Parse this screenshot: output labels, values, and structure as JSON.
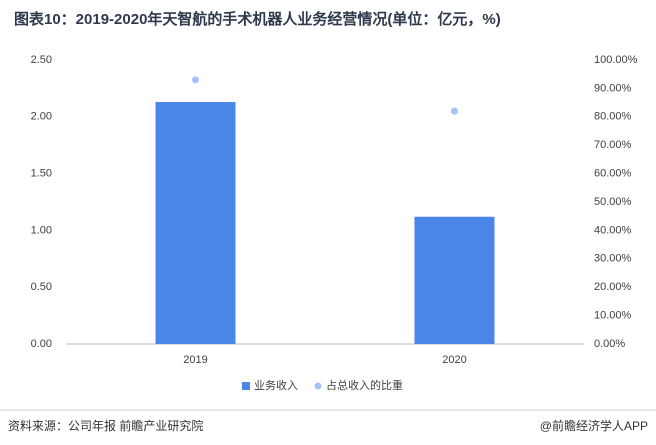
{
  "chart_data": {
    "type": "bar",
    "title": "图表10：2019-2020年天智航的手术机器人业务经营情况(单位：亿元，%)",
    "categories": [
      "2019",
      "2020"
    ],
    "series": [
      {
        "name": "业务收入",
        "color": "#4a86e8",
        "type": "bar",
        "values": [
          2.13,
          1.12
        ]
      },
      {
        "name": "占总收入的比重",
        "color": "#a4c2f4",
        "type": "scatter",
        "axis": "y2",
        "values": [
          93,
          82
        ]
      }
    ],
    "ylim": [
      0,
      2.5
    ],
    "yticks": [
      {
        "value": 0,
        "label": "0.00"
      },
      {
        "value": 0.5,
        "label": "0.50"
      },
      {
        "value": 1,
        "label": "1.00"
      },
      {
        "value": 1.5,
        "label": "1.50"
      },
      {
        "value": 2,
        "label": "2.00"
      },
      {
        "value": 2.5,
        "label": "2.50"
      }
    ],
    "y2lim": [
      0,
      100
    ],
    "y2ticks": [
      {
        "value": 0,
        "label": "0.00%"
      },
      {
        "value": 10,
        "label": "10.00%"
      },
      {
        "value": 20,
        "label": "20.00%"
      },
      {
        "value": 30,
        "label": "30.00%"
      },
      {
        "value": 40,
        "label": "40.00%"
      },
      {
        "value": 50,
        "label": "50.00%"
      },
      {
        "value": 60,
        "label": "60.00%"
      },
      {
        "value": 70,
        "label": "70.00%"
      },
      {
        "value": 80,
        "label": "80.00%"
      },
      {
        "value": 90,
        "label": "90.00%"
      },
      {
        "value": 100,
        "label": "100.00%"
      }
    ],
    "legend": "bottom",
    "source": "资料来源：公司年报 前瞻产业研究院",
    "credit": "@前瞻经济学人APP"
  }
}
